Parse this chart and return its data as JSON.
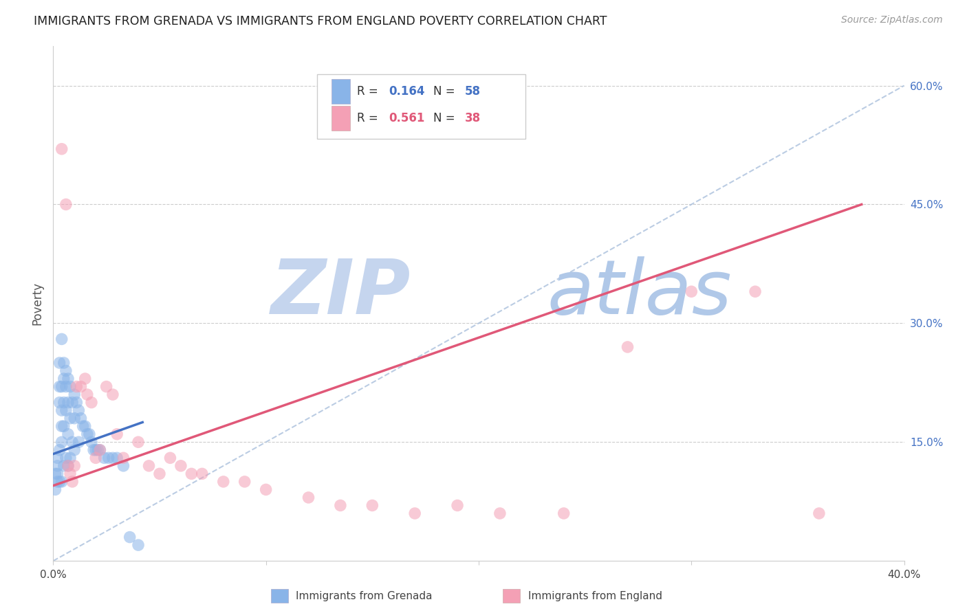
{
  "title": "IMMIGRANTS FROM GRENADA VS IMMIGRANTS FROM ENGLAND POVERTY CORRELATION CHART",
  "source": "Source: ZipAtlas.com",
  "ylabel": "Poverty",
  "x_min": 0.0,
  "x_max": 0.4,
  "y_min": 0.0,
  "y_max": 0.65,
  "y_ticks_right": [
    0.15,
    0.3,
    0.45,
    0.6
  ],
  "y_tick_labels_right": [
    "15.0%",
    "30.0%",
    "45.0%",
    "60.0%"
  ],
  "grenada_color": "#89b4e8",
  "england_color": "#f4a0b5",
  "grenada_R": 0.164,
  "grenada_N": 58,
  "england_R": 0.561,
  "england_N": 38,
  "watermark_zip": "ZIP",
  "watermark_atlas": "atlas",
  "watermark_color_zip": "#c5d5ee",
  "watermark_color_atlas": "#b0c8e8",
  "grenada_line_color": "#4472c4",
  "england_line_color": "#e05878",
  "diag_line_color": "#aac0dc",
  "background_color": "#ffffff",
  "grenada_x": [
    0.001,
    0.001,
    0.002,
    0.002,
    0.002,
    0.002,
    0.003,
    0.003,
    0.003,
    0.003,
    0.003,
    0.004,
    0.004,
    0.004,
    0.004,
    0.004,
    0.004,
    0.005,
    0.005,
    0.005,
    0.005,
    0.005,
    0.006,
    0.006,
    0.006,
    0.006,
    0.007,
    0.007,
    0.007,
    0.007,
    0.008,
    0.008,
    0.008,
    0.009,
    0.009,
    0.01,
    0.01,
    0.01,
    0.011,
    0.012,
    0.012,
    0.013,
    0.014,
    0.015,
    0.016,
    0.017,
    0.018,
    0.019,
    0.02,
    0.021,
    0.022,
    0.024,
    0.026,
    0.028,
    0.03,
    0.033,
    0.036,
    0.04
  ],
  "grenada_y": [
    0.11,
    0.09,
    0.13,
    0.12,
    0.11,
    0.1,
    0.25,
    0.22,
    0.2,
    0.14,
    0.1,
    0.28,
    0.22,
    0.19,
    0.17,
    0.15,
    0.1,
    0.25,
    0.23,
    0.2,
    0.17,
    0.12,
    0.24,
    0.22,
    0.19,
    0.13,
    0.23,
    0.2,
    0.16,
    0.12,
    0.22,
    0.18,
    0.13,
    0.2,
    0.15,
    0.21,
    0.18,
    0.14,
    0.2,
    0.19,
    0.15,
    0.18,
    0.17,
    0.17,
    0.16,
    0.16,
    0.15,
    0.14,
    0.14,
    0.14,
    0.14,
    0.13,
    0.13,
    0.13,
    0.13,
    0.12,
    0.03,
    0.02
  ],
  "england_x": [
    0.004,
    0.006,
    0.007,
    0.008,
    0.009,
    0.01,
    0.011,
    0.013,
    0.015,
    0.016,
    0.018,
    0.02,
    0.022,
    0.025,
    0.028,
    0.03,
    0.033,
    0.04,
    0.045,
    0.05,
    0.055,
    0.06,
    0.065,
    0.07,
    0.08,
    0.09,
    0.1,
    0.12,
    0.135,
    0.15,
    0.17,
    0.19,
    0.21,
    0.24,
    0.27,
    0.3,
    0.33,
    0.36
  ],
  "england_y": [
    0.52,
    0.45,
    0.12,
    0.11,
    0.1,
    0.12,
    0.22,
    0.22,
    0.23,
    0.21,
    0.2,
    0.13,
    0.14,
    0.22,
    0.21,
    0.16,
    0.13,
    0.15,
    0.12,
    0.11,
    0.13,
    0.12,
    0.11,
    0.11,
    0.1,
    0.1,
    0.09,
    0.08,
    0.07,
    0.07,
    0.06,
    0.07,
    0.06,
    0.06,
    0.27,
    0.34,
    0.34,
    0.06
  ],
  "grenada_line_x": [
    0.0,
    0.042
  ],
  "grenada_line_y": [
    0.135,
    0.175
  ],
  "england_line_x": [
    0.0,
    0.38
  ],
  "england_line_y": [
    0.095,
    0.45
  ],
  "diag_line_x": [
    0.0,
    0.4
  ],
  "diag_line_y": [
    0.0,
    0.6
  ]
}
